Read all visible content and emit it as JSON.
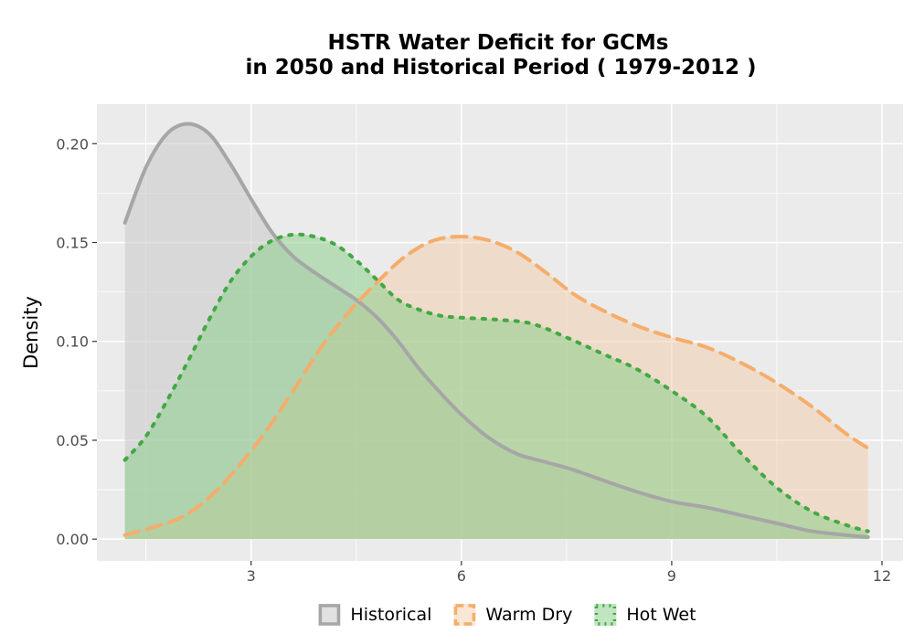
{
  "chart_data": {
    "type": "area",
    "title_lines": [
      "HSTR  Water Deficit for GCMs",
      "in 2050 and Historical Period ( 1979-2012 )"
    ],
    "xlabel": "",
    "ylabel": "Density",
    "xlim": [
      0.8,
      12.3
    ],
    "ylim": [
      -0.011,
      0.22
    ],
    "x_ticks": [
      3,
      6,
      9,
      12
    ],
    "x_tick_labels": [
      "3",
      "6",
      "9",
      "12"
    ],
    "y_ticks": [
      0.0,
      0.05,
      0.1,
      0.15,
      0.2
    ],
    "y_tick_labels": [
      "0.00",
      "0.05",
      "0.10",
      "0.15",
      "0.20"
    ],
    "grid": true,
    "legend_position": "bottom",
    "series": [
      {
        "name": "Historical",
        "line_color": "#a6a6a6",
        "fill_color": "#c8c8c8",
        "fill_opacity": 0.55,
        "line_style": "solid",
        "x": [
          1.2,
          1.5,
          1.8,
          2.1,
          2.4,
          2.7,
          3.0,
          3.3,
          3.6,
          3.9,
          4.2,
          4.5,
          4.8,
          5.1,
          5.4,
          5.7,
          6.0,
          6.4,
          6.8,
          7.2,
          7.6,
          8.0,
          8.5,
          9.0,
          9.5,
          10.0,
          10.5,
          11.0,
          11.5,
          11.8
        ],
        "values": [
          0.16,
          0.188,
          0.205,
          0.21,
          0.205,
          0.19,
          0.172,
          0.155,
          0.143,
          0.135,
          0.128,
          0.121,
          0.112,
          0.1,
          0.086,
          0.074,
          0.063,
          0.051,
          0.043,
          0.039,
          0.035,
          0.03,
          0.024,
          0.019,
          0.016,
          0.012,
          0.008,
          0.004,
          0.002,
          0.001
        ]
      },
      {
        "name": "Warm Dry",
        "line_color": "#f5ad6b",
        "fill_color": "#f4c8a2",
        "fill_opacity": 0.45,
        "line_style": "dashed",
        "x": [
          1.2,
          1.6,
          2.0,
          2.4,
          2.8,
          3.2,
          3.6,
          4.0,
          4.4,
          4.8,
          5.2,
          5.6,
          6.0,
          6.4,
          6.8,
          7.2,
          7.6,
          8.0,
          8.5,
          9.0,
          9.5,
          10.0,
          10.5,
          11.0,
          11.5,
          11.8
        ],
        "values": [
          0.002,
          0.006,
          0.011,
          0.021,
          0.036,
          0.054,
          0.075,
          0.097,
          0.115,
          0.13,
          0.143,
          0.151,
          0.153,
          0.151,
          0.145,
          0.135,
          0.124,
          0.116,
          0.108,
          0.102,
          0.097,
          0.089,
          0.079,
          0.067,
          0.053,
          0.046
        ]
      },
      {
        "name": "Hot Wet",
        "line_color": "#43a843",
        "fill_color": "#8ccf8c",
        "fill_opacity": 0.55,
        "line_style": "dotted",
        "x": [
          1.2,
          1.5,
          1.8,
          2.1,
          2.4,
          2.7,
          3.0,
          3.3,
          3.6,
          3.9,
          4.2,
          4.5,
          4.8,
          5.1,
          5.4,
          5.7,
          6.0,
          6.5,
          7.0,
          7.5,
          8.0,
          8.5,
          9.0,
          9.5,
          10.0,
          10.5,
          11.0,
          11.5,
          11.8
        ],
        "values": [
          0.04,
          0.052,
          0.07,
          0.09,
          0.111,
          0.13,
          0.143,
          0.151,
          0.154,
          0.153,
          0.149,
          0.141,
          0.131,
          0.121,
          0.116,
          0.113,
          0.112,
          0.111,
          0.109,
          0.102,
          0.094,
          0.086,
          0.075,
          0.062,
          0.043,
          0.026,
          0.014,
          0.007,
          0.004
        ]
      }
    ]
  }
}
